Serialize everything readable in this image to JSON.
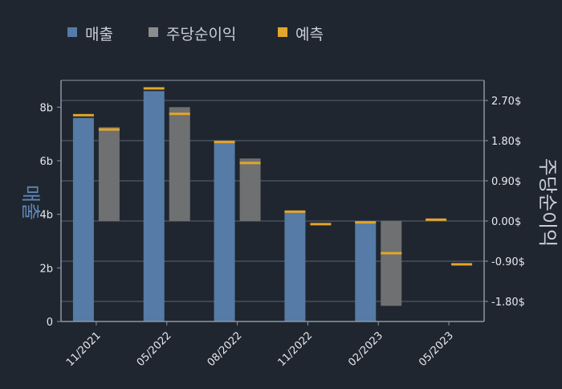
{
  "chart_data": {
    "type": "bar",
    "categories": [
      "11/2021",
      "05/2022",
      "08/2022",
      "11/2022",
      "02/2023",
      "05/2023"
    ],
    "legend": {
      "placement": "top-left",
      "items": [
        {
          "label": "매출",
          "color": "#557ba6"
        },
        {
          "label": "주당순이익",
          "color": "#8a8c8e"
        },
        {
          "label": "예측",
          "color": "#e3a52a"
        }
      ]
    },
    "ylabel_left": "매출",
    "ylabel_right": "주당순이익",
    "y_left": {
      "ylim": [
        0,
        9
      ],
      "ticks": [
        0,
        2,
        4,
        6,
        8
      ],
      "tick_labels": [
        "0",
        "2b",
        "4b",
        "6b",
        "8b"
      ]
    },
    "y_right": {
      "ylim": [
        -2.25,
        3.15
      ],
      "ticks": [
        -1.8,
        -0.9,
        0,
        0.9,
        1.8,
        2.7
      ],
      "tick_labels": [
        "-1.80$",
        "-0.90$",
        "0.00$",
        "0.90$",
        "1.80$",
        "2.70$"
      ]
    },
    "series": [
      {
        "name": "매출",
        "axis": "left",
        "values": [
          7.6,
          8.6,
          6.7,
          4.1,
          3.7,
          null
        ],
        "forecast": [
          7.7,
          8.7,
          6.7,
          4.1,
          3.7,
          3.8
        ]
      },
      {
        "name": "주당순이익",
        "axis": "right",
        "values": [
          2.1,
          2.55,
          1.4,
          null,
          -1.9,
          null
        ],
        "forecast": [
          2.05,
          2.4,
          1.3,
          -0.07,
          -0.72,
          -0.97
        ]
      }
    ],
    "grid": true,
    "colors": {
      "background": "#1f2630",
      "revenue": "#557ba6",
      "eps": "#6e7071",
      "forecast": "#e3a52a",
      "grid": "#5b6470",
      "axis": "#8c96a2"
    }
  }
}
